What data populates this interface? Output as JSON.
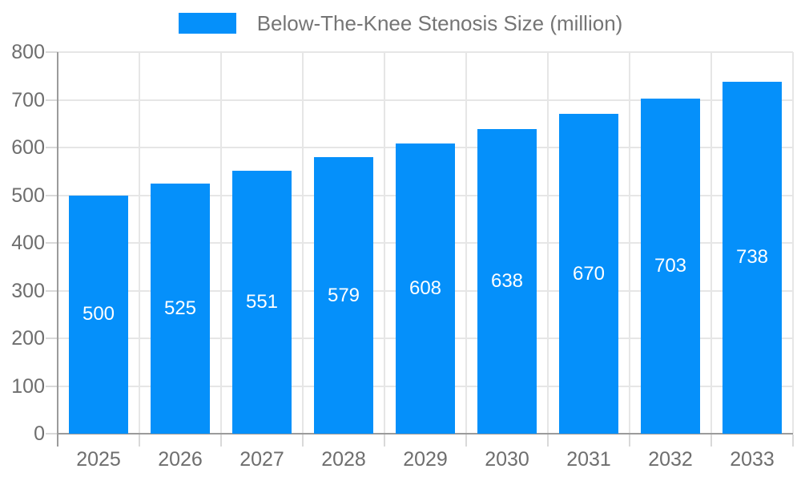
{
  "chart_data": {
    "type": "bar",
    "title": "Below-The-Knee Stenosis Size (million)",
    "legend": {
      "label": "Below-The-Knee Stenosis Size (million)",
      "position": "top"
    },
    "categories": [
      "2025",
      "2026",
      "2027",
      "2028",
      "2029",
      "2030",
      "2031",
      "2032",
      "2033"
    ],
    "values": [
      500,
      525,
      551,
      579,
      608,
      638,
      670,
      703,
      738
    ],
    "xlabel": "",
    "ylabel": "",
    "ylim": [
      0,
      800
    ],
    "yticks": [
      0,
      100,
      200,
      300,
      400,
      500,
      600,
      700,
      800
    ],
    "grid": true,
    "bar_labels_visible": true,
    "colors": {
      "bar": "#0590fa",
      "bar_label": "#ffffff",
      "axis_line": "#9b9b9b",
      "grid_line": "#e6e6e6",
      "tick_line": "#d9d9d9",
      "tick_text": "#6e6e6e",
      "legend_text": "#757575",
      "background": "#ffffff"
    }
  }
}
